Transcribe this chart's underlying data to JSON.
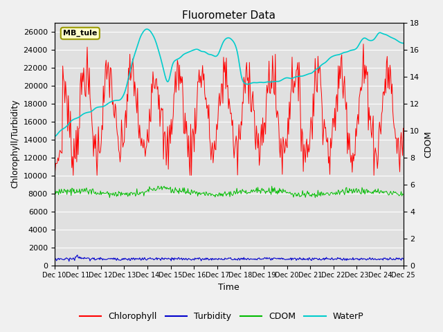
{
  "title": "Fluorometer Data",
  "xlabel": "Time",
  "ylabel_left": "Chlorophyll/Turbidity",
  "ylabel_right": "CDOM",
  "ylim_left": [
    0,
    27000
  ],
  "ylim_right": [
    0,
    18
  ],
  "yticks_left": [
    0,
    2000,
    4000,
    6000,
    8000,
    10000,
    12000,
    14000,
    16000,
    18000,
    20000,
    22000,
    24000,
    26000
  ],
  "yticks_right": [
    0,
    2,
    4,
    6,
    8,
    10,
    12,
    14,
    16,
    18
  ],
  "xtick_labels": [
    "Dec 10",
    "Dec 11",
    "Dec 12",
    "Dec 13",
    "Dec 14",
    "Dec 15",
    "Dec 16",
    "Dec 17",
    "Dec 18",
    "Dec 19",
    "Dec 20",
    "Dec 21",
    "Dec 22",
    "Dec 23",
    "Dec 24",
    "Dec 25"
  ],
  "station_label": "MB_tule",
  "legend_entries": [
    "Chlorophyll",
    "Turbidity",
    "CDOM",
    "WaterP"
  ],
  "colors": {
    "chlorophyll": "#ff0000",
    "turbidity": "#0000cc",
    "cdom": "#00bb00",
    "waterp": "#00cccc",
    "background": "#e0e0e0",
    "station_box_bg": "#ffffcc",
    "station_box_border": "#999900"
  },
  "grid_color": "#ffffff",
  "fig_bg": "#f0f0f0",
  "n_points": 500
}
